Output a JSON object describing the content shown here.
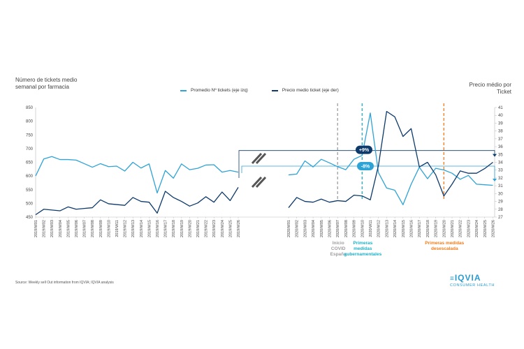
{
  "chart_data": {
    "type": "line",
    "ylabel_left": "Número de tickets medio semanal por farmacia",
    "ylabel_right": "Precio médio por Ticket",
    "ylim_left": [
      450,
      850
    ],
    "ylim_right": [
      27,
      41
    ],
    "yticks_left": [
      "450",
      "500",
      "550",
      "600",
      "650",
      "700",
      "750",
      "800",
      "850"
    ],
    "yticks_right": [
      "27",
      "28",
      "29",
      "30",
      "31",
      "32",
      "33",
      "34",
      "35",
      "36",
      "37",
      "38",
      "39",
      "40",
      "41"
    ],
    "categories": [
      "2019/W01",
      "2019/W02",
      "2019/W03",
      "2019/W04",
      "2019/W05",
      "2019/W06",
      "2019/W07",
      "2019/W08",
      "2019/W09",
      "2019/W10",
      "2019/W11",
      "2019/W12",
      "2019/W13",
      "2019/W14",
      "2019/W15",
      "2019/W16",
      "2019/W17",
      "2019/W18",
      "2019/W19",
      "2019/W20",
      "2019/W21",
      "2019/W22",
      "2019/W23",
      "2019/W24",
      "2019/W25",
      "2019/W26",
      "2020/W01",
      "2020/W02",
      "2020/W03",
      "2020/W04",
      "2020/W05",
      "2020/W06",
      "2020/W07",
      "2020/W08",
      "2020/W09",
      "2020/W10",
      "2020/W11",
      "2020/W12",
      "2020/W13",
      "2020/W14",
      "2020/W15",
      "2020/W16",
      "2020/W17",
      "2020/W18",
      "2020/W19",
      "2020/W20",
      "2020/W21",
      "2020/W22",
      "2020/W23",
      "2020/W24",
      "2020/W25",
      "2020/W26"
    ],
    "series": [
      {
        "name": "Promedio Nº tickets (eje izq)",
        "axis": "left",
        "color": "#2ea3d5",
        "values": [
          600,
          662,
          671,
          660,
          660,
          658,
          645,
          632,
          645,
          634,
          636,
          618,
          650,
          629,
          644,
          538,
          620,
          592,
          644,
          623,
          628,
          640,
          641,
          614,
          620,
          614,
          604,
          607,
          655,
          633,
          661,
          648,
          634,
          623,
          661,
          675,
          830,
          612,
          556,
          548,
          495,
          570,
          632,
          590,
          628,
          622,
          610,
          588,
          602,
          570,
          568,
          566
        ]
      },
      {
        "name": "Precio medio ticket (eje der)",
        "axis": "right",
        "color": "#0d3a6b",
        "values": [
          27.3,
          28.0,
          27.9,
          27.8,
          28.3,
          28.0,
          28.1,
          28.2,
          29.2,
          28.7,
          28.6,
          28.5,
          29.5,
          29.0,
          28.9,
          27.5,
          30.3,
          29.5,
          29.0,
          28.4,
          28.8,
          29.6,
          28.9,
          30.2,
          29.1,
          30.8,
          28.2,
          29.5,
          29.0,
          28.9,
          29.3,
          28.9,
          29.1,
          29.0,
          29.8,
          29.7,
          29.2,
          33.6,
          40.5,
          39.8,
          37.3,
          38.3,
          33.4,
          34.0,
          32.4,
          29.7,
          31.2,
          32.9,
          32.6,
          32.6,
          33.2,
          34.0
        ]
      }
    ],
    "reference_lines": [
      {
        "week": "2020/W07",
        "color": "#9e9e9e",
        "label": [
          "Inicio",
          "COVID",
          "España"
        ]
      },
      {
        "week": "2020/W10",
        "color": "#1ab0c8",
        "label": [
          "Primeras",
          "medidas",
          "gubernamentales"
        ]
      },
      {
        "week": "2020/W20",
        "color": "#f07c1a",
        "label": [
          "Primeras medidas",
          "desescalada"
        ]
      }
    ],
    "callouts": [
      {
        "text": "+9%",
        "color": "#0d3a6b",
        "axis": "right",
        "level": 35.5
      },
      {
        "text": "-8%",
        "color": "#2ea3d5",
        "axis": "left",
        "level": 636
      }
    ]
  },
  "legend": {
    "left_series": "Promedio Nº tickets (eje izq)",
    "right_series": "Precio medio ticket (eje der)"
  },
  "source": "Source: Weekly sell Out information from IQVIA; IQVIA analysis",
  "logo": {
    "name": "IQVIA",
    "subtitle": "CONSUMER HEALTH"
  }
}
